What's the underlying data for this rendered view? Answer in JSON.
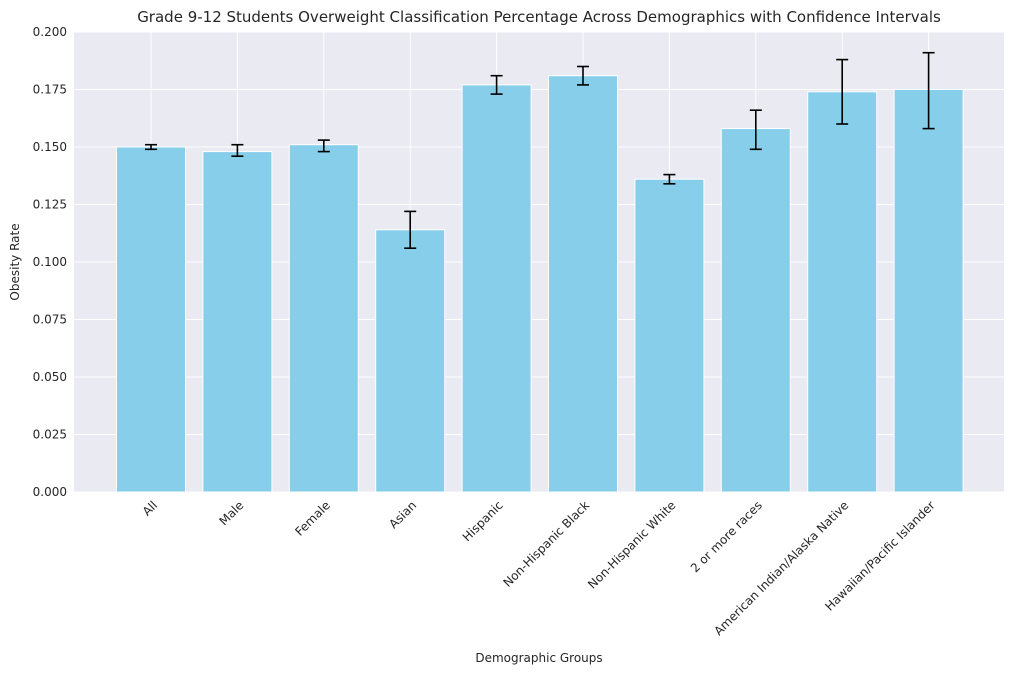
{
  "chart_data": {
    "type": "bar",
    "title": "Grade 9-12 Students Overweight Classification Percentage Across Demographics with Confidence Intervals",
    "xlabel": "Demographic Groups",
    "ylabel": "Obesity Rate",
    "ylim": [
      0,
      0.2
    ],
    "yticks": [
      "0.000",
      "0.025",
      "0.050",
      "0.075",
      "0.100",
      "0.125",
      "0.150",
      "0.175",
      "0.200"
    ],
    "grid": true,
    "categories": [
      "All",
      "Male",
      "Female",
      "Asian",
      "Hispanic",
      "Non-Hispanic Black",
      "Non-Hispanic White",
      "2 or more races",
      "American Indian/Alaska Native",
      "Hawaiian/Pacific Islander"
    ],
    "values": [
      0.15,
      0.148,
      0.151,
      0.114,
      0.177,
      0.181,
      0.136,
      0.158,
      0.174,
      0.175
    ],
    "ci_lower": [
      0.149,
      0.146,
      0.148,
      0.106,
      0.173,
      0.177,
      0.134,
      0.149,
      0.16,
      0.158
    ],
    "ci_upper": [
      0.151,
      0.151,
      0.153,
      0.122,
      0.181,
      0.185,
      0.138,
      0.166,
      0.188,
      0.191
    ],
    "colors": {
      "bar": "#87ceeb",
      "background": "#eaeaf2",
      "grid": "#ffffff",
      "error_bar": "#000000"
    }
  }
}
